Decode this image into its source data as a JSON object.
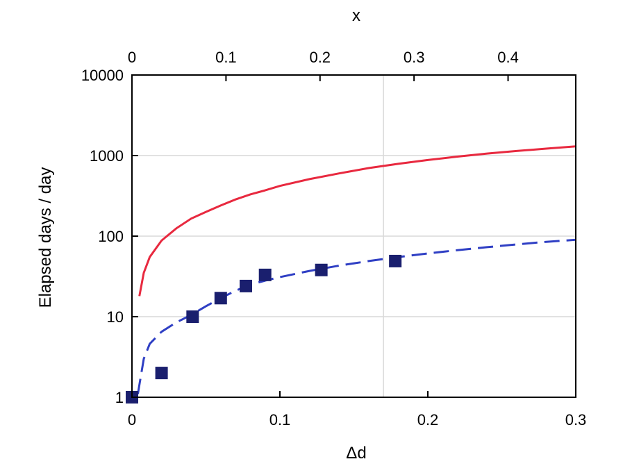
{
  "chart_data": {
    "type": "scatter",
    "title": "",
    "xlabel": "Δd",
    "ylabel": "Elapsed days / day",
    "x2label": "x",
    "xlim": [
      0,
      0.3
    ],
    "ylim": [
      1,
      10000
    ],
    "yscale": "log",
    "grid": true,
    "x_ticks": [
      "0",
      "0.1",
      "0.2",
      "0.3"
    ],
    "x2_ticks": [
      "0",
      "0.1",
      "0.2",
      "0.3",
      "0.4"
    ],
    "y_ticks": [
      "1",
      "10",
      "100",
      "1000",
      "10000"
    ],
    "x_tick_values": [
      0,
      0.1,
      0.2,
      0.3
    ],
    "x2_tick_values": [
      0,
      0.1,
      0.2,
      0.3,
      0.4
    ],
    "y_tick_values": [
      1,
      10,
      100,
      1000,
      10000
    ],
    "vertical_ref_x": 0.17,
    "series": [
      {
        "style": "solid",
        "color": "#e8293f",
        "points": [
          [
            0.005,
            18
          ],
          [
            0.008,
            35
          ],
          [
            0.012,
            55
          ],
          [
            0.02,
            88
          ],
          [
            0.03,
            125
          ],
          [
            0.04,
            165
          ],
          [
            0.05,
            200
          ],
          [
            0.06,
            240
          ],
          [
            0.07,
            285
          ],
          [
            0.08,
            330
          ],
          [
            0.09,
            370
          ],
          [
            0.1,
            420
          ],
          [
            0.12,
            510
          ],
          [
            0.14,
            600
          ],
          [
            0.16,
            700
          ],
          [
            0.18,
            790
          ],
          [
            0.2,
            880
          ],
          [
            0.22,
            970
          ],
          [
            0.24,
            1060
          ],
          [
            0.26,
            1140
          ],
          [
            0.28,
            1220
          ],
          [
            0.3,
            1300
          ]
        ]
      },
      {
        "style": "dashed",
        "color": "#2f3fc4",
        "points": [
          [
            0.004,
            1.1
          ],
          [
            0.008,
            3.0
          ],
          [
            0.012,
            4.6
          ],
          [
            0.02,
            6.5
          ],
          [
            0.03,
            8.5
          ],
          [
            0.04,
            10.5
          ],
          [
            0.05,
            13.5
          ],
          [
            0.06,
            17
          ],
          [
            0.07,
            21
          ],
          [
            0.08,
            25
          ],
          [
            0.09,
            28
          ],
          [
            0.1,
            31
          ],
          [
            0.12,
            37
          ],
          [
            0.14,
            43
          ],
          [
            0.16,
            49
          ],
          [
            0.18,
            55
          ],
          [
            0.2,
            61
          ],
          [
            0.22,
            67
          ],
          [
            0.24,
            73
          ],
          [
            0.26,
            79
          ],
          [
            0.28,
            85
          ],
          [
            0.3,
            90
          ]
        ]
      },
      {
        "style": "markers",
        "color": "#1a1f6e",
        "points": [
          [
            0,
            1
          ],
          [
            0.02,
            2
          ],
          [
            0.041,
            10
          ],
          [
            0.06,
            17
          ],
          [
            0.077,
            24
          ],
          [
            0.09,
            33
          ],
          [
            0.128,
            38
          ],
          [
            0.178,
            49
          ]
        ]
      }
    ]
  }
}
